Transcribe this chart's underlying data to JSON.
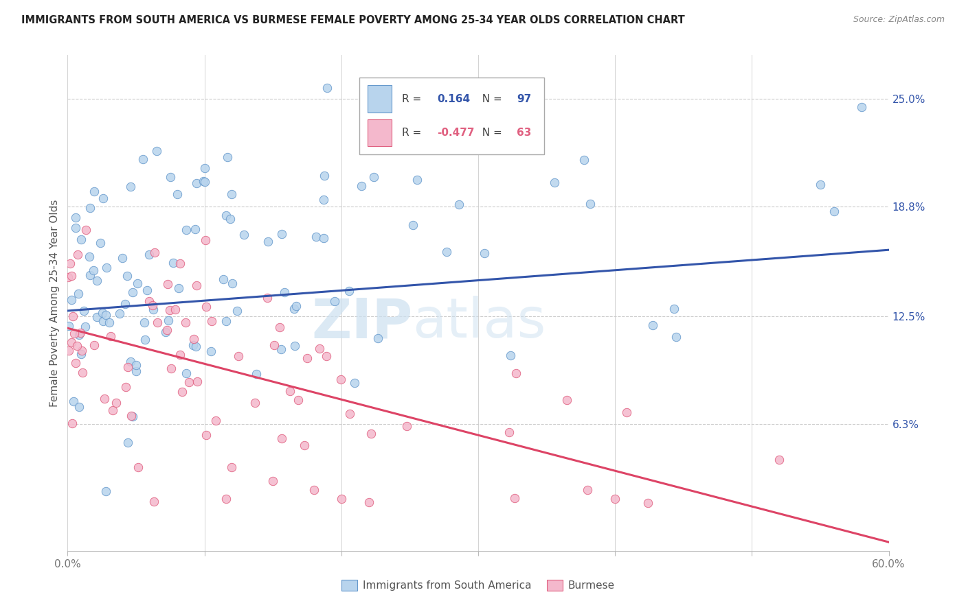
{
  "title": "IMMIGRANTS FROM SOUTH AMERICA VS BURMESE FEMALE POVERTY AMONG 25-34 YEAR OLDS CORRELATION CHART",
  "source": "Source: ZipAtlas.com",
  "ylabel": "Female Poverty Among 25-34 Year Olds",
  "ylabel_ticks_right": [
    "25.0%",
    "18.8%",
    "12.5%",
    "6.3%"
  ],
  "ylabel_ticks_right_vals": [
    0.25,
    0.188,
    0.125,
    0.063
  ],
  "xlim": [
    0.0,
    0.6
  ],
  "ylim": [
    -0.01,
    0.275
  ],
  "legend_blue_R": "0.164",
  "legend_blue_N": "97",
  "legend_pink_R": "-0.477",
  "legend_pink_N": "63",
  "legend_labels": [
    "Immigrants from South America",
    "Burmese"
  ],
  "blue_color": "#b8d4ed",
  "blue_edge": "#6699cc",
  "pink_color": "#f4b8cc",
  "pink_edge": "#e06080",
  "blue_line_color": "#3355aa",
  "pink_line_color": "#dd4466",
  "watermark_color": "#cce0f0",
  "background_color": "#ffffff",
  "grid_color": "#cccccc",
  "marker_size": 80,
  "blue_line_x0": 0.0,
  "blue_line_y0": 0.128,
  "blue_line_x1": 0.6,
  "blue_line_y1": 0.163,
  "pink_line_x0": 0.0,
  "pink_line_y0": 0.118,
  "pink_line_x1": 0.6,
  "pink_line_y1": -0.005
}
